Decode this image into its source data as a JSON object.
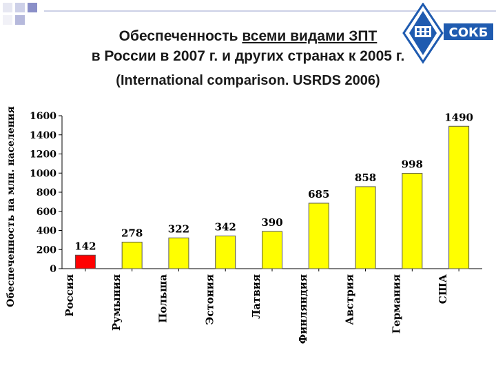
{
  "title": {
    "line1_a": "Обеспеченность ",
    "line1_b": "всеми видами ЗПТ",
    "line2": "в России в 2007 г. и других странах к 2005 г.",
    "line3": "(International comparison. USRDS 2006)"
  },
  "logo": {
    "text": "СОКБ"
  },
  "colors": {
    "highlight": "#ff0000",
    "bar": "#ffff00",
    "bar_stroke": "#555555",
    "deco_square": "#8a8fc8"
  },
  "chart_data": {
    "type": "bar",
    "ylabel": "Обеспеченность на млн. населения",
    "categories": [
      "Россия",
      "Румыния",
      "Польша",
      "Эстония",
      "Латвия",
      "Финляндия",
      "Австрия",
      "Германия",
      "США"
    ],
    "values": [
      142,
      278,
      322,
      342,
      390,
      685,
      858,
      998,
      1490
    ],
    "data_labels": [
      "142",
      "278",
      "322",
      "342",
      "390",
      "685",
      "858",
      "998",
      "1490"
    ],
    "highlight_index": 0,
    "ylim": [
      0,
      1600
    ],
    "yticks": [
      0,
      200,
      400,
      600,
      800,
      1000,
      1200,
      1400,
      1600
    ],
    "grid": false,
    "legend": "none"
  }
}
